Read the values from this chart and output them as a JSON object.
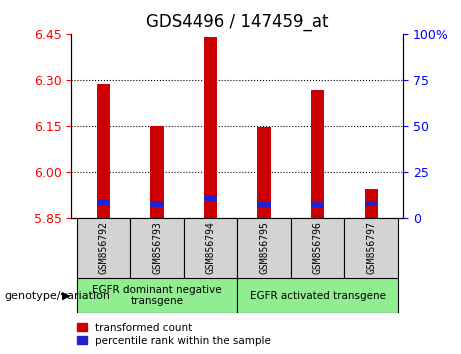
{
  "title": "GDS4496 / 147459_at",
  "samples": [
    "GSM856792",
    "GSM856793",
    "GSM856794",
    "GSM856795",
    "GSM856796",
    "GSM856797"
  ],
  "bar_bottom": 5.85,
  "red_tops": [
    6.285,
    6.15,
    6.44,
    6.145,
    6.265,
    5.945
  ],
  "blue_bottoms": [
    5.89,
    5.885,
    5.905,
    5.882,
    5.882,
    5.888
  ],
  "blue_heights": [
    0.018,
    0.018,
    0.018,
    0.018,
    0.018,
    0.018
  ],
  "ylim_left": [
    5.85,
    6.45
  ],
  "yticks_left": [
    5.85,
    6.0,
    6.15,
    6.3,
    6.45
  ],
  "ylim_right": [
    0,
    100
  ],
  "yticks_right": [
    0,
    25,
    50,
    75,
    100
  ],
  "ytick_labels_right": [
    "0",
    "25",
    "50",
    "75",
    "100%"
  ],
  "group1_label": "EGFR dominant negative\ntransgene",
  "group2_label": "EGFR activated transgene",
  "group1_samples": [
    0,
    1,
    2
  ],
  "group2_samples": [
    3,
    4,
    5
  ],
  "xlabel_left": "genotype/variation",
  "legend_red_label": "transformed count",
  "legend_blue_label": "percentile rank within the sample",
  "bar_width": 0.25,
  "bar_color_red": "#cc0000",
  "bar_color_blue": "#2222cc",
  "group_bg_color": "#90ee90",
  "sample_bg_color": "#d3d3d3",
  "title_fontsize": 12,
  "tick_fontsize": 9,
  "label_fontsize": 8,
  "grid_yticks": [
    6.0,
    6.15,
    6.3
  ]
}
